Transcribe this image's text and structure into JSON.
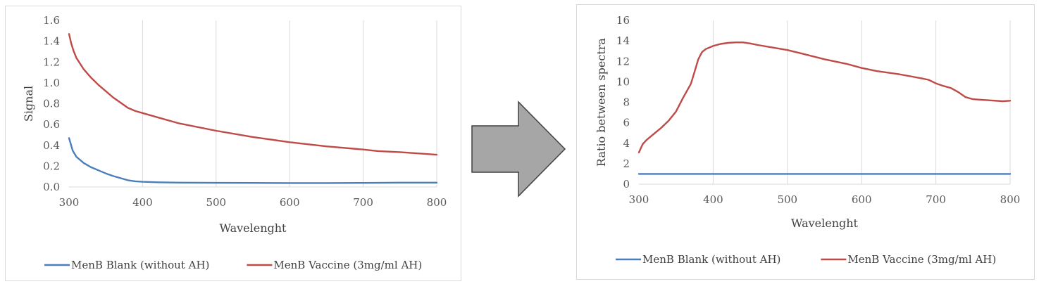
{
  "chart_data": [
    {
      "type": "line",
      "title": "",
      "xlabel": "Wavelenght",
      "ylabel": "Signal",
      "xlim": [
        300,
        800
      ],
      "ylim": [
        0,
        1.6
      ],
      "x_ticks": [
        "300",
        "400",
        "500",
        "600",
        "700",
        "800"
      ],
      "y_ticks": [
        "0.0",
        "0.2",
        "0.4",
        "0.6",
        "0.8",
        "1.0",
        "1.2",
        "1.4",
        "1.6"
      ],
      "grid": "vertical",
      "legend_position": "bottom",
      "series": [
        {
          "name": "MenB Blank (without AH)",
          "color": "#4a7ebb",
          "x": [
            300,
            305,
            310,
            320,
            330,
            340,
            350,
            360,
            370,
            380,
            390,
            400,
            420,
            450,
            500,
            550,
            600,
            650,
            700,
            720,
            750,
            800
          ],
          "y": [
            0.47,
            0.35,
            0.29,
            0.23,
            0.19,
            0.16,
            0.13,
            0.105,
            0.085,
            0.065,
            0.055,
            0.05,
            0.045,
            0.042,
            0.04,
            0.039,
            0.038,
            0.038,
            0.039,
            0.04,
            0.042,
            0.042
          ]
        },
        {
          "name": "MenB Vaccine (3mg/ml AH)",
          "color": "#be4b48",
          "x": [
            300,
            303,
            306,
            310,
            320,
            330,
            340,
            350,
            360,
            370,
            380,
            390,
            400,
            420,
            450,
            500,
            550,
            600,
            650,
            700,
            720,
            750,
            800
          ],
          "y": [
            1.47,
            1.38,
            1.31,
            1.24,
            1.13,
            1.05,
            0.98,
            0.92,
            0.86,
            0.81,
            0.76,
            0.73,
            0.71,
            0.67,
            0.61,
            0.54,
            0.48,
            0.43,
            0.39,
            0.36,
            0.345,
            0.335,
            0.31
          ]
        }
      ]
    },
    {
      "type": "line",
      "title": "",
      "xlabel": "Wavelenght",
      "ylabel": "Ratio between spectra",
      "xlim": [
        300,
        800
      ],
      "ylim": [
        0,
        16
      ],
      "x_ticks": [
        "300",
        "400",
        "500",
        "600",
        "700",
        "800"
      ],
      "y_ticks": [
        "0",
        "2",
        "4",
        "6",
        "8",
        "10",
        "12",
        "14",
        "16"
      ],
      "grid": "vertical",
      "legend_position": "bottom",
      "series": [
        {
          "name": "MenB Blank (without AH)",
          "color": "#4a7ebb",
          "x": [
            300,
            800
          ],
          "y": [
            1,
            1
          ]
        },
        {
          "name": "MenB Vaccine (3mg/ml AH)",
          "color": "#be4b48",
          "x": [
            300,
            305,
            310,
            320,
            330,
            340,
            350,
            360,
            370,
            375,
            380,
            385,
            390,
            400,
            410,
            420,
            430,
            440,
            450,
            460,
            480,
            500,
            520,
            550,
            580,
            600,
            620,
            650,
            680,
            690,
            700,
            710,
            720,
            730,
            740,
            750,
            770,
            790,
            800
          ],
          "y": [
            3.1,
            3.9,
            4.3,
            4.9,
            5.5,
            6.2,
            7.1,
            8.5,
            9.8,
            11.0,
            12.2,
            12.9,
            13.2,
            13.5,
            13.7,
            13.8,
            13.85,
            13.85,
            13.75,
            13.6,
            13.35,
            13.1,
            12.75,
            12.2,
            11.75,
            11.35,
            11.05,
            10.75,
            10.35,
            10.2,
            9.85,
            9.6,
            9.4,
            9.0,
            8.5,
            8.3,
            8.2,
            8.1,
            8.15
          ]
        }
      ]
    }
  ],
  "arrow": {
    "fill": "#a6a6a6",
    "stroke": "#404040"
  }
}
